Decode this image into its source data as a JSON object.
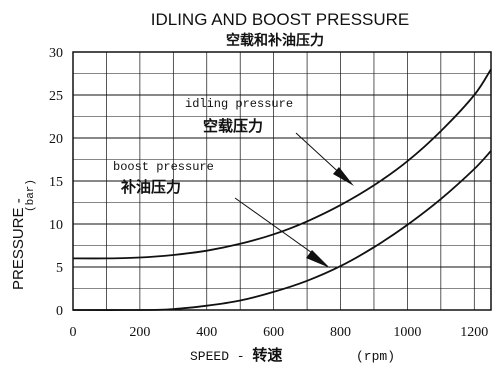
{
  "chart_data": {
    "type": "line",
    "title": "IDLING AND BOOST PRESSURE",
    "subtitle": "空载和补油压力",
    "xlabel": "SPEED - ",
    "xlabel_cn": "转速",
    "xunit": "(rpm)",
    "ylabel": "PRESSURE - ",
    "yunit": "(bar)",
    "xlim": [
      0,
      1250
    ],
    "ylim": [
      0,
      30
    ],
    "x_ticks": [
      "0",
      "200",
      "400",
      "600",
      "800",
      "1000",
      "1200"
    ],
    "y_ticks": [
      "0",
      "5",
      "10",
      "15",
      "20",
      "25",
      "30"
    ],
    "grid": true,
    "series": [
      {
        "name": "idling pressure",
        "name_cn": "空载压力",
        "x": [
          0,
          100,
          200,
          300,
          400,
          500,
          600,
          700,
          800,
          900,
          1000,
          1100,
          1200,
          1250
        ],
        "y": [
          6,
          6,
          6.1,
          6.4,
          6.9,
          7.7,
          8.8,
          10.3,
          12.2,
          14.5,
          17.3,
          20.8,
          25,
          28
        ]
      },
      {
        "name": "boost pressure",
        "name_cn": "补油压力",
        "x": [
          0,
          200,
          300,
          400,
          500,
          600,
          700,
          800,
          900,
          1000,
          1100,
          1200,
          1250
        ],
        "y": [
          0,
          0,
          0.1,
          0.5,
          1.1,
          2.1,
          3.4,
          5.1,
          7.3,
          9.9,
          12.9,
          16.4,
          18.5
        ]
      }
    ]
  }
}
